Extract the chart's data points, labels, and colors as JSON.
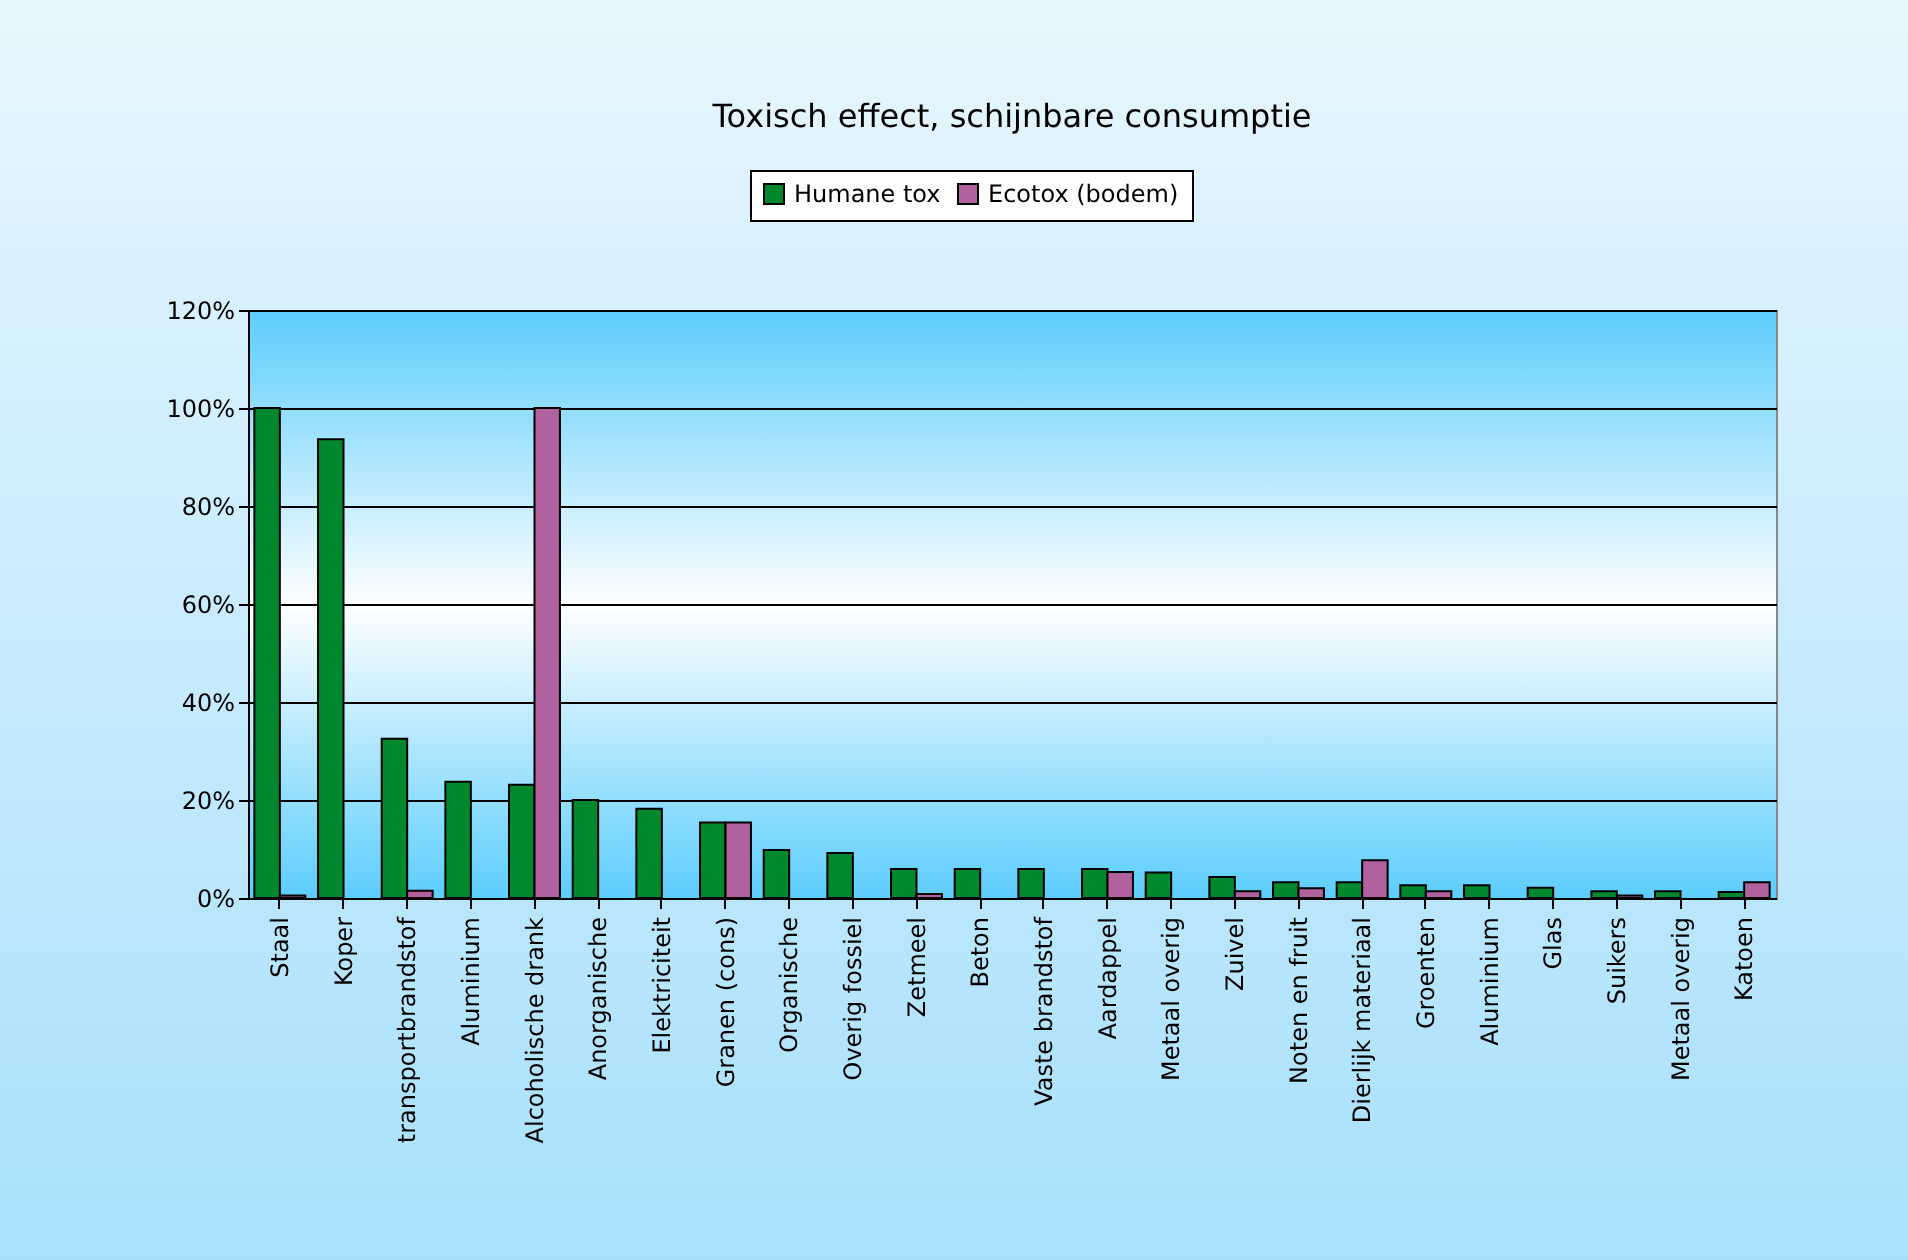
{
  "chart_data": {
    "type": "bar",
    "title": "Toxisch effect, schijnbare consumptie",
    "categories": [
      "Staal",
      "Koper",
      "transportbrandstof",
      "Aluminium",
      "Alcoholische drank",
      "Anorganische",
      "Elektriciteit",
      "Granen (cons)",
      "Organische",
      "Overig fossiel",
      "Zetmeel",
      "Beton",
      "Vaste brandstof",
      "Aardappel",
      "Metaal overig",
      "Zuivel",
      "Noten en fruit",
      "Dierlijk materiaal",
      "Groenten",
      "Aluminium",
      "Glas",
      "Suikers",
      "Metaal overig",
      "Katoen"
    ],
    "series": [
      {
        "name": "Humane tox",
        "color": "#00882f",
        "values": [
          100,
          93.6,
          32.5,
          23.7,
          23.1,
          20,
          18.2,
          15.4,
          9.8,
          9.2,
          5.9,
          5.9,
          5.9,
          5.9,
          5.2,
          4.3,
          3.2,
          3.2,
          2.6,
          2.6,
          2.1,
          1.4,
          1.4,
          1.2
        ]
      },
      {
        "name": "Ecotox (bodem)",
        "color": "#b0619e",
        "values": [
          0.5,
          null,
          1.5,
          null,
          100,
          null,
          null,
          15.4,
          null,
          null,
          0.8,
          null,
          null,
          5.3,
          null,
          1.4,
          2,
          7.7,
          1.4,
          null,
          null,
          0.5,
          null,
          3.2
        ]
      }
    ],
    "ylim": [
      0,
      120
    ],
    "yticks": [
      {
        "value": 0,
        "label": "0%"
      },
      {
        "value": 20,
        "label": "20%"
      },
      {
        "value": 40,
        "label": "40%"
      },
      {
        "value": 60,
        "label": "60%"
      },
      {
        "value": 80,
        "label": "80%"
      },
      {
        "value": 100,
        "label": "100%"
      },
      {
        "value": 120,
        "label": "120%"
      }
    ],
    "grid": "y",
    "legend": "top"
  }
}
